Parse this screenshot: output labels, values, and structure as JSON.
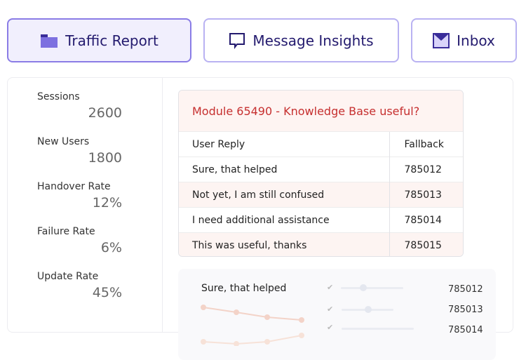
{
  "tabs": [
    {
      "label": "Traffic Report",
      "icon": "folder-icon",
      "active": true
    },
    {
      "label": "Message Insights",
      "icon": "chat-icon",
      "active": false
    },
    {
      "label": "Inbox",
      "icon": "mail-icon",
      "active": false
    }
  ],
  "metrics": [
    {
      "label": "Sessions",
      "value": "2600"
    },
    {
      "label": "New Users",
      "value": "1800"
    },
    {
      "label": "Handover Rate",
      "value": "12%"
    },
    {
      "label": "Failure Rate",
      "value": "6%"
    },
    {
      "label": "Update Rate",
      "value": "45%"
    }
  ],
  "card": {
    "title": "Module 65490 - Knowledge Base useful?",
    "columns": [
      "User Reply",
      "Fallback"
    ],
    "rows": [
      [
        "Sure, that helped",
        "785012"
      ],
      [
        "Not yet, I am still confused",
        "785013"
      ],
      [
        "I need additional assistance",
        "785014"
      ],
      [
        "This was useful, thanks",
        "785015"
      ]
    ]
  },
  "lower": {
    "title": "Sure, that helped",
    "numbers": [
      "785012",
      "785013",
      "785014"
    ]
  },
  "colors": {
    "accent": "#8a7ce6",
    "title_red": "#c62f2f",
    "line": "#f2c8bc"
  }
}
